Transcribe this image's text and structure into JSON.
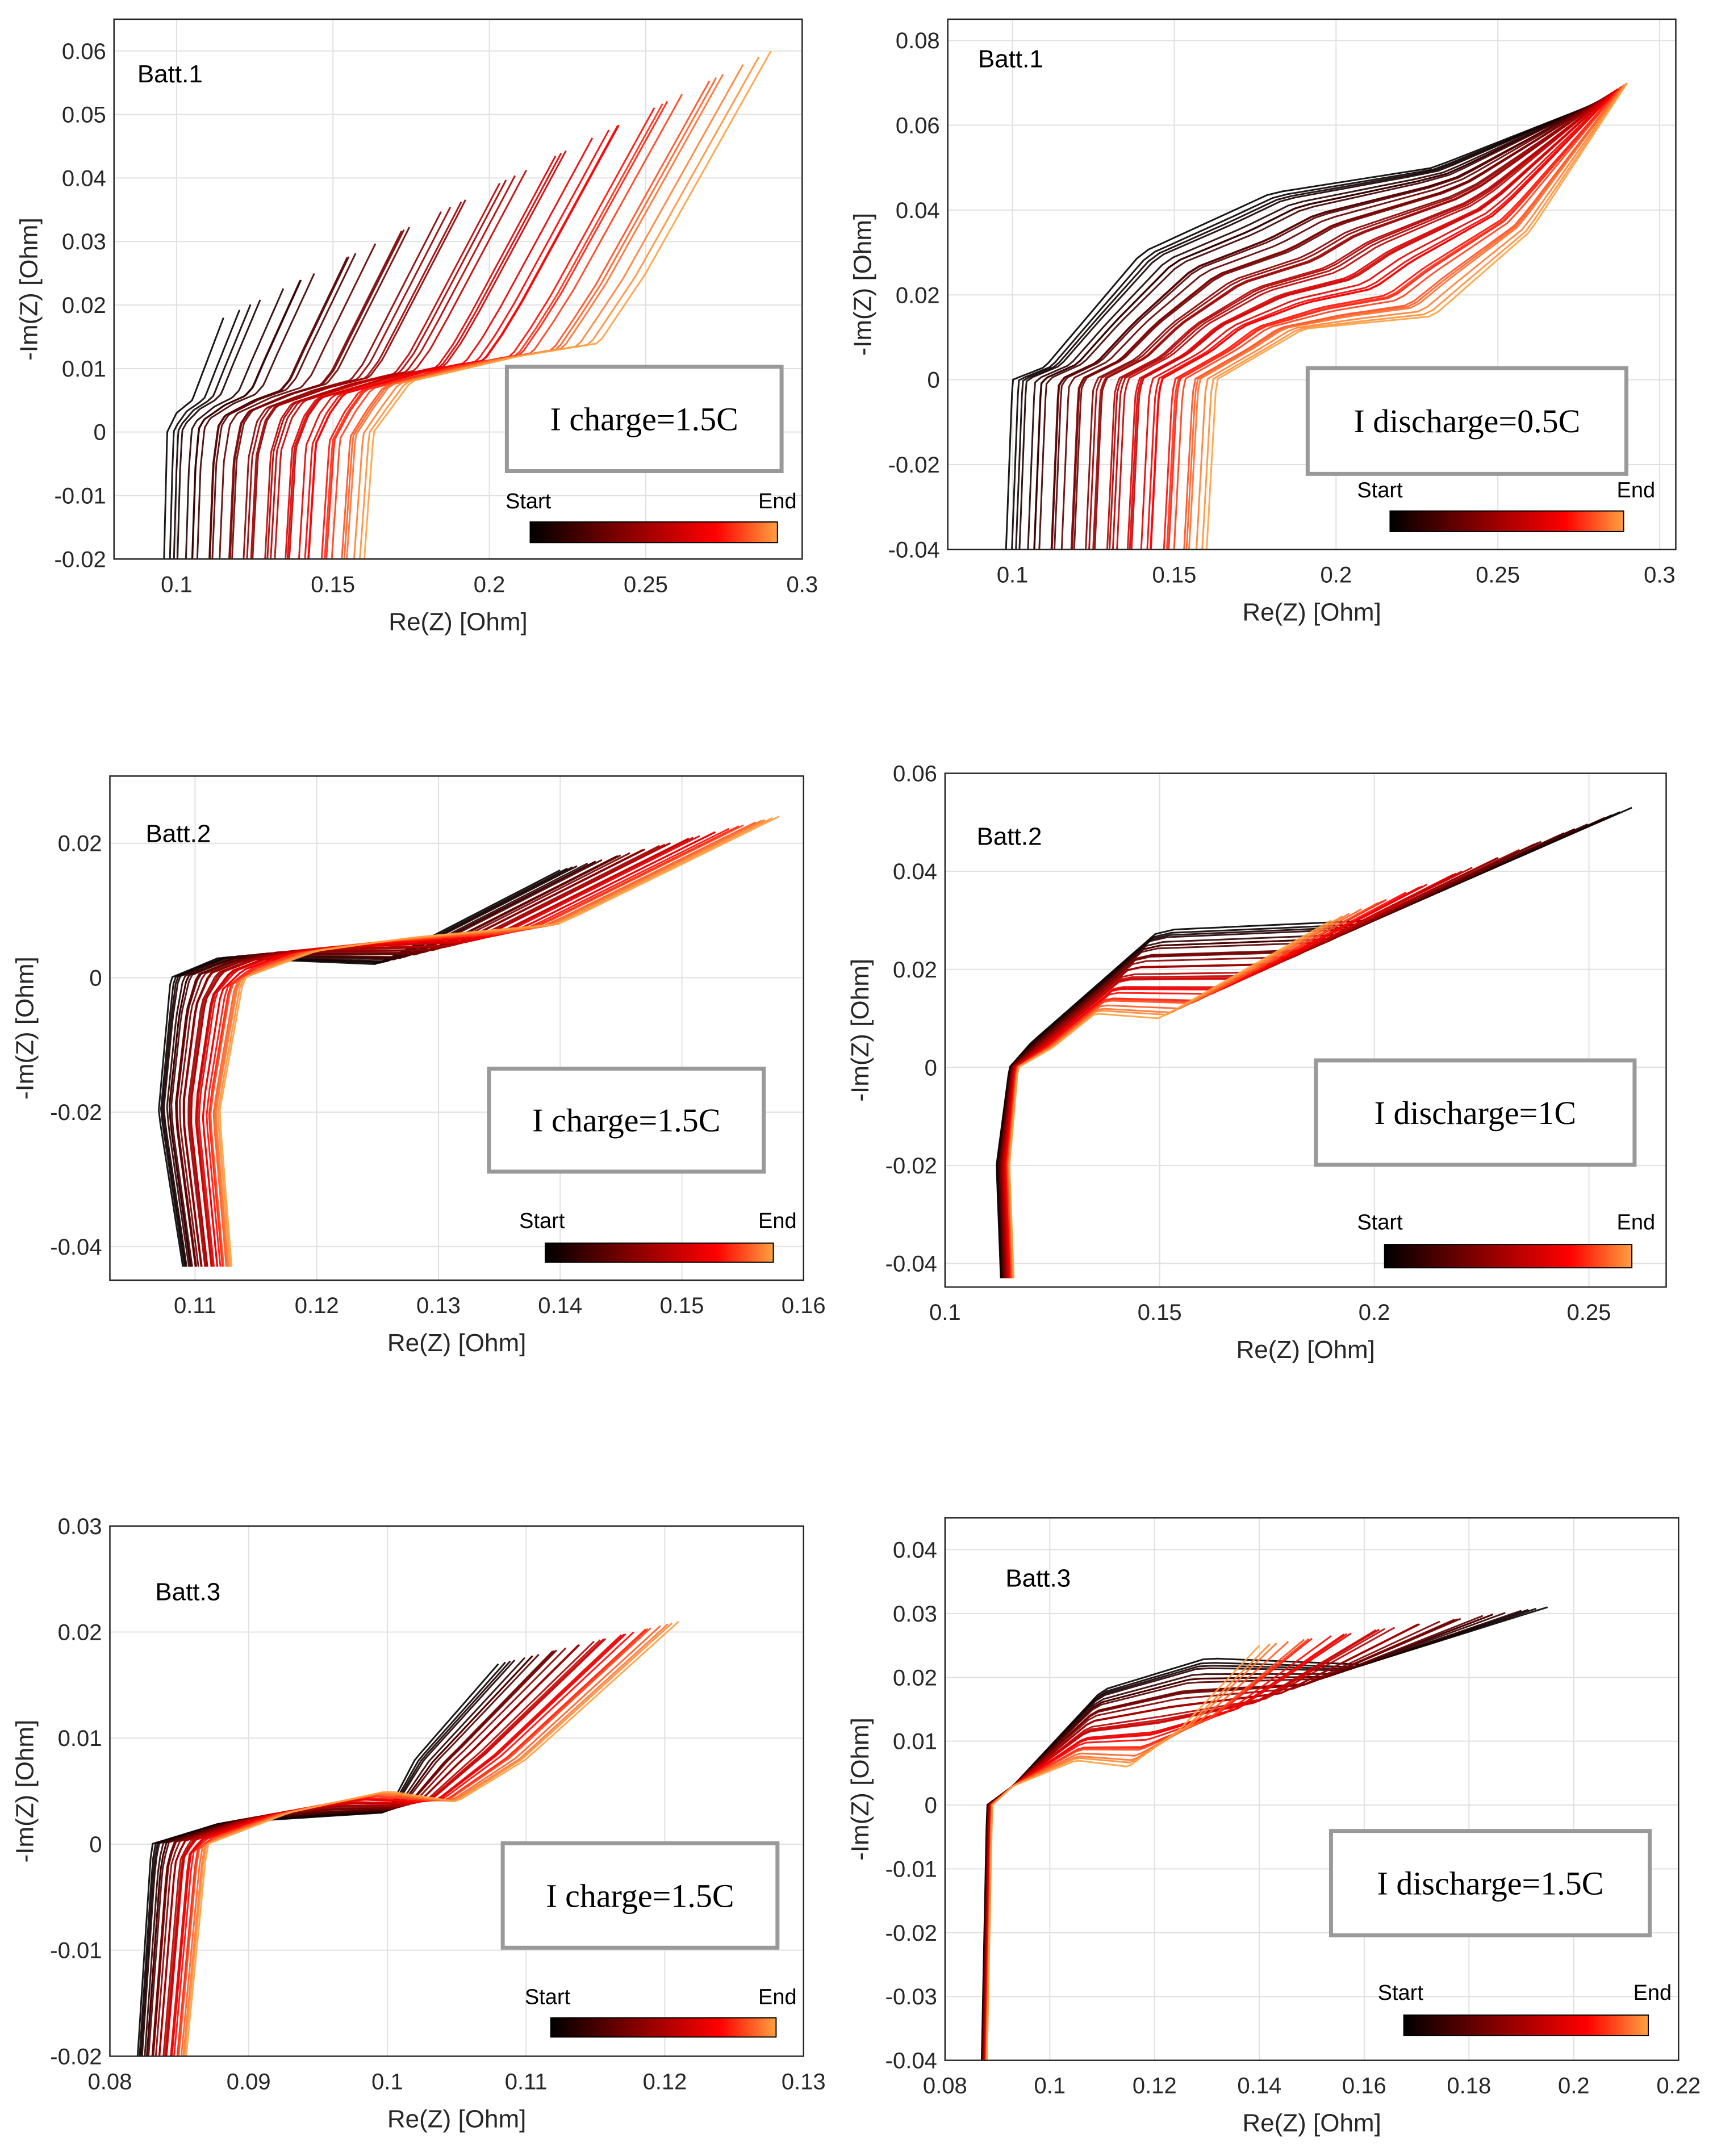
{
  "chart_data": [
    {
      "type": "line",
      "panel_label": "Batt.1",
      "annotation": "I charge=1.5C",
      "xlabel": "Re(Z) [Ohm]",
      "ylabel": "-Im(Z) [Ohm]",
      "xlim": [
        0.08,
        0.3
      ],
      "ylim": [
        -0.02,
        0.065
      ],
      "xticks": [
        0.1,
        0.15,
        0.2,
        0.25,
        0.3
      ],
      "xtick_labels": [
        "0.1",
        "0.15",
        "0.2",
        "0.25",
        "0.3"
      ],
      "yticks": [
        -0.02,
        -0.01,
        0,
        0.01,
        0.02,
        0.03,
        0.04,
        0.05,
        0.06
      ],
      "ytick_labels": [
        "-0.02",
        "-0.01",
        "0",
        "0.01",
        "0.02",
        "0.03",
        "0.04",
        "0.05",
        "0.06"
      ],
      "colorbar": {
        "start": "Start",
        "end": "End"
      },
      "grid": true,
      "curve_count": 40,
      "start_curve": [
        [
          0.096,
          -0.02
        ],
        [
          0.097,
          0
        ],
        [
          0.1,
          0.003
        ],
        [
          0.105,
          0.005
        ],
        [
          0.115,
          0.018
        ]
      ],
      "end_curve": [
        [
          0.16,
          -0.02
        ],
        [
          0.163,
          0
        ],
        [
          0.175,
          0.008
        ],
        [
          0.21,
          0.012
        ],
        [
          0.235,
          0.014
        ],
        [
          0.25,
          0.025
        ],
        [
          0.29,
          0.06
        ]
      ]
    },
    {
      "type": "line",
      "panel_label": "Batt.1",
      "annotation": "I discharge=0.5C",
      "xlabel": "Re(Z) [Ohm]",
      "ylabel": "-Im(Z) [Ohm]",
      "xlim": [
        0.08,
        0.305
      ],
      "ylim": [
        -0.04,
        0.085
      ],
      "xticks": [
        0.1,
        0.15,
        0.2,
        0.25,
        0.3
      ],
      "xtick_labels": [
        "0.1",
        "0.15",
        "0.2",
        "0.25",
        "0.3"
      ],
      "yticks": [
        -0.04,
        -0.02,
        0,
        0.02,
        0.04,
        0.06,
        0.08
      ],
      "ytick_labels": [
        "-0.04",
        "-0.02",
        "0",
        "0.02",
        "0.04",
        "0.06",
        "0.08"
      ],
      "colorbar": {
        "start": "Start",
        "end": "End"
      },
      "grid": true,
      "curve_count": 40,
      "start_curve": [
        [
          0.098,
          -0.04
        ],
        [
          0.1,
          0
        ],
        [
          0.11,
          0.003
        ],
        [
          0.14,
          0.03
        ],
        [
          0.18,
          0.044
        ],
        [
          0.23,
          0.05
        ],
        [
          0.28,
          0.065
        ]
      ],
      "end_curve": [
        [
          0.16,
          -0.04
        ],
        [
          0.163,
          0
        ],
        [
          0.19,
          0.012
        ],
        [
          0.23,
          0.015
        ],
        [
          0.26,
          0.035
        ],
        [
          0.29,
          0.07
        ]
      ]
    },
    {
      "type": "line",
      "panel_label": "Batt.2",
      "annotation": "I charge=1.5C",
      "xlabel": "Re(Z) [Ohm]",
      "ylabel": "-Im(Z) [Ohm]",
      "xlim": [
        0.103,
        0.16
      ],
      "ylim": [
        -0.045,
        0.03
      ],
      "xticks": [
        0.11,
        0.12,
        0.13,
        0.14,
        0.15,
        0.16
      ],
      "xtick_labels": [
        "0.11",
        "0.12",
        "0.13",
        "0.14",
        "0.15",
        "0.16"
      ],
      "yticks": [
        -0.04,
        -0.02,
        0,
        0.02
      ],
      "ytick_labels": [
        "-0.04",
        "-0.02",
        "0",
        "0.02"
      ],
      "colorbar": {
        "start": "Start",
        "end": "End"
      },
      "grid": true,
      "curve_count": 35,
      "start_curve": [
        [
          0.109,
          -0.043
        ],
        [
          0.107,
          -0.02
        ],
        [
          0.108,
          0
        ],
        [
          0.112,
          0.003
        ],
        [
          0.125,
          0.002
        ],
        [
          0.14,
          0.016
        ]
      ],
      "end_curve": [
        [
          0.113,
          -0.043
        ],
        [
          0.112,
          -0.02
        ],
        [
          0.114,
          0
        ],
        [
          0.12,
          0.004
        ],
        [
          0.128,
          0.006
        ],
        [
          0.14,
          0.008
        ],
        [
          0.158,
          0.024
        ]
      ]
    },
    {
      "type": "line",
      "panel_label": "Batt.2",
      "annotation": "I discharge=1C",
      "xlabel": "Re(Z) [Ohm]",
      "ylabel": "-Im(Z) [Ohm]",
      "xlim": [
        0.1,
        0.268
      ],
      "ylim": [
        -0.0448,
        0.06
      ],
      "xticks": [
        0.1,
        0.15,
        0.2,
        0.25
      ],
      "xtick_labels": [
        "0.1",
        "0.15",
        "0.2",
        "0.25"
      ],
      "yticks": [
        -0.04,
        -0.02,
        0,
        0.02,
        0.04,
        0.06
      ],
      "ytick_labels": [
        "-0.04",
        "-0.02",
        "0",
        "0.02",
        "0.04",
        "0.06"
      ],
      "colorbar": {
        "start": "Start",
        "end": "End"
      },
      "grid": true,
      "curve_count": 30,
      "start_curve": [
        [
          0.113,
          -0.043
        ],
        [
          0.112,
          -0.02
        ],
        [
          0.115,
          0
        ],
        [
          0.12,
          0.005
        ],
        [
          0.15,
          0.028
        ],
        [
          0.2,
          0.03
        ],
        [
          0.26,
          0.053
        ]
      ],
      "end_curve": [
        [
          0.116,
          -0.043
        ],
        [
          0.115,
          -0.02
        ],
        [
          0.117,
          0
        ],
        [
          0.125,
          0.004
        ],
        [
          0.135,
          0.011
        ],
        [
          0.15,
          0.01
        ],
        [
          0.19,
          0.03
        ]
      ]
    },
    {
      "type": "line",
      "panel_label": "Batt.3",
      "annotation": "I charge=1.5C",
      "xlabel": "Re(Z) [Ohm]",
      "ylabel": "-Im(Z) [Ohm]",
      "xlim": [
        0.08,
        0.13
      ],
      "ylim": [
        -0.02,
        0.03
      ],
      "xticks": [
        0.08,
        0.09,
        0.1,
        0.11,
        0.12,
        0.13
      ],
      "xtick_labels": [
        "0.08",
        "0.09",
        "0.1",
        "0.11",
        "0.12",
        "0.13"
      ],
      "yticks": [
        -0.02,
        -0.01,
        0,
        0.01,
        0.02,
        0.03
      ],
      "ytick_labels": [
        "-0.02",
        "-0.01",
        "0",
        "0.01",
        "0.02",
        "0.03"
      ],
      "colorbar": {
        "start": "Start",
        "end": "End"
      },
      "grid": true,
      "curve_count": 30,
      "start_curve": [
        [
          0.082,
          -0.02
        ],
        [
          0.083,
          0
        ],
        [
          0.088,
          0.002
        ],
        [
          0.1,
          0.003
        ],
        [
          0.102,
          0.008
        ],
        [
          0.108,
          0.017
        ]
      ],
      "end_curve": [
        [
          0.0855,
          -0.02
        ],
        [
          0.087,
          0
        ],
        [
          0.093,
          0.003
        ],
        [
          0.1,
          0.005
        ],
        [
          0.105,
          0.004
        ],
        [
          0.11,
          0.008
        ],
        [
          0.121,
          0.021
        ]
      ]
    },
    {
      "type": "line",
      "panel_label": "Batt.3",
      "annotation": "I discharge=1.5C",
      "xlabel": "Re(Z) [Ohm]",
      "ylabel": "-Im(Z) [Ohm]",
      "xlim": [
        0.08,
        0.22
      ],
      "ylim": [
        -0.04,
        0.045
      ],
      "xticks": [
        0.08,
        0.1,
        0.12,
        0.14,
        0.16,
        0.18,
        0.2,
        0.22
      ],
      "xtick_labels": [
        "0.08",
        "0.1",
        "0.12",
        "0.14",
        "0.16",
        "0.18",
        "0.2",
        "0.22"
      ],
      "yticks": [
        -0.04,
        -0.03,
        -0.02,
        -0.01,
        0,
        0.01,
        0.02,
        0.03,
        0.04
      ],
      "ytick_labels": [
        "-0.04",
        "-0.03",
        "-0.02",
        "-0.01",
        "0",
        "0.01",
        "0.02",
        "0.03",
        "0.04"
      ],
      "colorbar": {
        "start": "Start",
        "end": "End"
      },
      "grid": true,
      "curve_count": 30,
      "start_curve": [
        [
          0.087,
          -0.04
        ],
        [
          0.088,
          0
        ],
        [
          0.093,
          0.003
        ],
        [
          0.11,
          0.018
        ],
        [
          0.13,
          0.023
        ],
        [
          0.16,
          0.022
        ],
        [
          0.195,
          0.031
        ]
      ],
      "end_curve": [
        [
          0.088,
          -0.04
        ],
        [
          0.089,
          0
        ],
        [
          0.093,
          0.003
        ],
        [
          0.105,
          0.007
        ],
        [
          0.115,
          0.006
        ],
        [
          0.125,
          0.012
        ],
        [
          0.14,
          0.025
        ]
      ]
    }
  ],
  "colors": {
    "start": "#000000",
    "mid1": "#7a0000",
    "mid2": "#ff0000",
    "end": "#ffa040",
    "grid": "#e0e0e0",
    "axis": "#262626",
    "box": "#999999"
  }
}
